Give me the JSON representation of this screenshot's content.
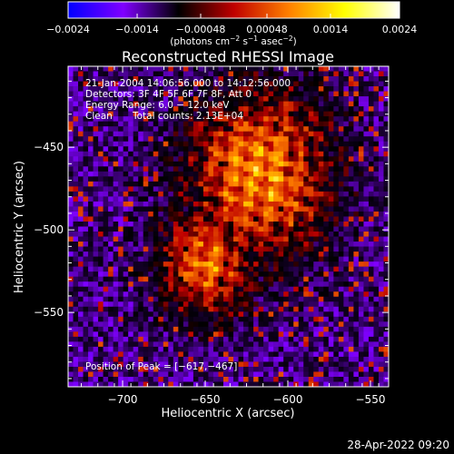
{
  "colorbar": {
    "tick_labels": [
      "−0.0024",
      "−0.0014",
      "−0.00048",
      "0.00048",
      "0.0014",
      "0.0024"
    ],
    "tick_values": [
      -0.0024,
      -0.0014,
      -0.00048,
      0.00048,
      0.0014,
      0.0024
    ],
    "range": [
      -0.0024,
      0.0024
    ],
    "units_label_prefix": "(photons cm",
    "units_sup1": "−2",
    "units_mid1": " s",
    "units_sup2": "−1",
    "units_mid2": " asec",
    "units_sup3": "−2",
    "units_suffix": ")",
    "colors": [
      "#0000ff",
      "#8000ff",
      "#000000",
      "#c00000",
      "#ff8000",
      "#ffff00",
      "#ffffff"
    ]
  },
  "chart_data": {
    "type": "heatmap",
    "title": "Reconstructed RHESSI Image",
    "xlabel": "Heliocentric X (arcsec)",
    "ylabel": "Heliocentric Y (arcsec)",
    "xlim": [
      -733,
      -539
    ],
    "ylim": [
      -595,
      -401
    ],
    "x_ticks": [
      -700,
      -650,
      -600,
      -550
    ],
    "x_tick_labels": [
      "−700",
      "−650",
      "−600",
      "−550"
    ],
    "y_ticks": [
      -450,
      -500,
      -550
    ],
    "y_tick_labels": [
      "−450",
      "−500",
      "−550"
    ],
    "peak_position": [
      -617,
      -467
    ],
    "annotations": {
      "time_range": "21-Jan-2004 14:06:56.000 to 14:12:56.000",
      "detectors": "Detectors: 3F 4F 5F 6F 7F 8F, Att 0",
      "energy_range": "Energy Range: 6.0 − 12.0 keV",
      "method": "Clean",
      "total_counts": "Total counts: 2.13E+04",
      "peak_label": "Position of Peak = [−617,−467]"
    }
  },
  "footer_timestamp": "28-Apr-2022 09:20"
}
